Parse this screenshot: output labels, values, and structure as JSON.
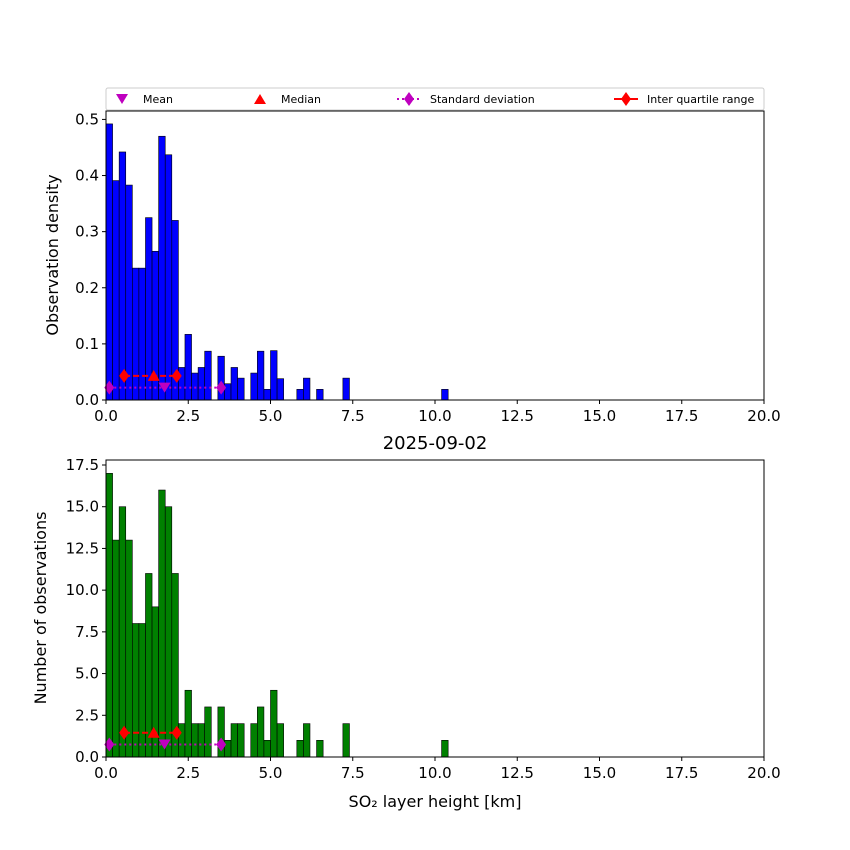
{
  "chart_data": [
    {
      "type": "bar",
      "title": "",
      "xlabel": "",
      "ylabel": "Observation density",
      "xlim": [
        0,
        20
      ],
      "ylim": [
        0,
        0.515
      ],
      "xticks": [
        "0.0",
        "2.5",
        "5.0",
        "7.5",
        "10.0",
        "12.5",
        "15.0",
        "17.5",
        "20.0"
      ],
      "yticks": [
        "0.0",
        "0.1",
        "0.2",
        "0.3",
        "0.4",
        "0.5"
      ],
      "bar_color": "#0000ff",
      "bin_width": 0.2,
      "bins_left": [
        0.0,
        0.2,
        0.4,
        0.6,
        0.8,
        1.0,
        1.2,
        1.4,
        1.6,
        1.8,
        2.0,
        2.2,
        2.4,
        2.6,
        2.8,
        3.0,
        3.4,
        3.6,
        3.8,
        4.0,
        4.4,
        4.6,
        4.8,
        5.0,
        5.2,
        5.8,
        6.0,
        6.4,
        7.2,
        10.2
      ],
      "values": [
        0.492,
        0.391,
        0.442,
        0.383,
        0.235,
        0.235,
        0.325,
        0.265,
        0.47,
        0.437,
        0.32,
        0.058,
        0.117,
        0.048,
        0.058,
        0.087,
        0.078,
        0.029,
        0.058,
        0.039,
        0.048,
        0.087,
        0.019,
        0.088,
        0.038,
        0.019,
        0.039,
        0.019,
        0.039,
        0.019
      ],
      "grid": false,
      "legend": {
        "position": "top",
        "entries": [
          {
            "label": "Mean",
            "marker": "triangle-down",
            "color": "#bf00bf"
          },
          {
            "label": "Median",
            "marker": "triangle-up",
            "color": "#ff0000"
          },
          {
            "label": "Standard deviation",
            "marker": "diamond",
            "line": "dotted",
            "color": "#bf00bf"
          },
          {
            "label": "Inter quartile range",
            "marker": "diamond",
            "line": "solid",
            "color": "#ff0000"
          }
        ]
      },
      "stats": {
        "mean": {
          "x": 1.78,
          "y": 0.022
        },
        "median": {
          "x": 1.45,
          "y": 0.043
        },
        "std_range": {
          "x": [
            0.1,
            3.5
          ],
          "y": 0.022
        },
        "iqr_range": {
          "x": [
            0.55,
            2.15
          ],
          "y": 0.043
        }
      }
    },
    {
      "type": "bar",
      "title": "2025-09-02",
      "xlabel": "SO₂ layer height [km]",
      "ylabel": "Number of observations",
      "xlim": [
        0,
        20
      ],
      "ylim": [
        0,
        17.8
      ],
      "xticks": [
        "0.0",
        "2.5",
        "5.0",
        "7.5",
        "10.0",
        "12.5",
        "15.0",
        "17.5",
        "20.0"
      ],
      "yticks": [
        "0.0",
        "2.5",
        "5.0",
        "7.5",
        "10.0",
        "12.5",
        "15.0",
        "17.5"
      ],
      "bar_color": "#008000",
      "bin_width": 0.2,
      "bins_left": [
        0.0,
        0.2,
        0.4,
        0.6,
        0.8,
        1.0,
        1.2,
        1.4,
        1.6,
        1.8,
        2.0,
        2.2,
        2.4,
        2.6,
        2.8,
        3.0,
        3.4,
        3.6,
        3.8,
        4.0,
        4.4,
        4.6,
        4.8,
        5.0,
        5.2,
        5.8,
        6.0,
        6.4,
        7.2,
        10.2
      ],
      "values": [
        17,
        13,
        15,
        13,
        8,
        8,
        11,
        9,
        16,
        15,
        11,
        2,
        4,
        2,
        2,
        3,
        3,
        1,
        2,
        2,
        2,
        3,
        1,
        4,
        2,
        1,
        2,
        1,
        2,
        1
      ],
      "grid": false,
      "stats": {
        "mean": {
          "x": 1.78,
          "y": 0.75
        },
        "median": {
          "x": 1.45,
          "y": 1.45
        },
        "std_range": {
          "x": [
            0.1,
            3.5
          ],
          "y": 0.75
        },
        "iqr_range": {
          "x": [
            0.55,
            2.15
          ],
          "y": 1.45
        }
      }
    }
  ]
}
